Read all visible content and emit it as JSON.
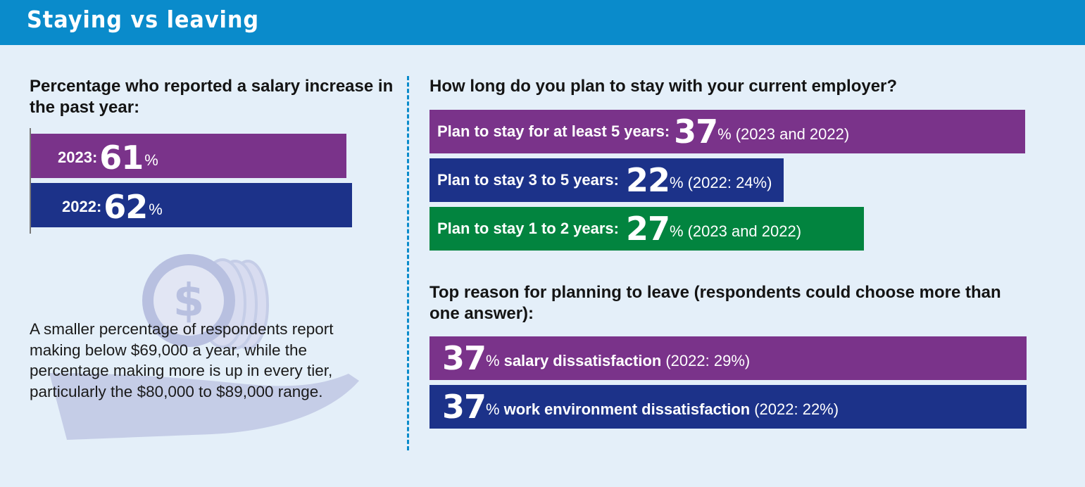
{
  "header": {
    "title": "Staying vs leaving"
  },
  "colors": {
    "purple": "#7a338a",
    "navy": "#1c3289",
    "green": "#02843f",
    "header": "#0a8bcb",
    "background": "#e4eff9"
  },
  "left": {
    "question": "Percentage who reported a salary increase in the past year:",
    "body": "A smaller percentage of respondents report making below $69,000 a year, while the percentage making more is up in every tier, particularly the $80,000 to $89,000 range.",
    "decor_icon": "hand-with-coins-icon"
  },
  "stay": {
    "question": "How long do you plan to stay with your current employer?"
  },
  "leave": {
    "question": "Top reason for planning to leave (respondents could choose more than one answer):"
  },
  "chart_data": [
    {
      "type": "bar",
      "title": "Percentage who reported a salary increase in the past year:",
      "categories": [
        "2023",
        "2022"
      ],
      "values": [
        61,
        62
      ],
      "labels": [
        "2023:",
        "2022:"
      ],
      "unit": "%"
    },
    {
      "type": "bar",
      "title": "How long do you plan to stay with your current employer?",
      "categories": [
        "Plan to stay for at least 5 years:",
        "Plan to stay 3 to 5 years:",
        "Plan to stay 1 to 2 years:"
      ],
      "values": [
        37,
        22,
        27
      ],
      "unit": "%",
      "notes": [
        "(2023 and 2022)",
        "(2022: 24%)",
        "(2023 and 2022)"
      ]
    },
    {
      "type": "bar",
      "title": "Top reason for planning to leave (respondents could choose more than one answer):",
      "categories": [
        "salary dissatisfaction",
        "work environment dissatisfaction"
      ],
      "values": [
        37,
        37
      ],
      "unit": "%",
      "notes": [
        "(2022: 29%)",
        "(2022: 22%)"
      ]
    }
  ]
}
